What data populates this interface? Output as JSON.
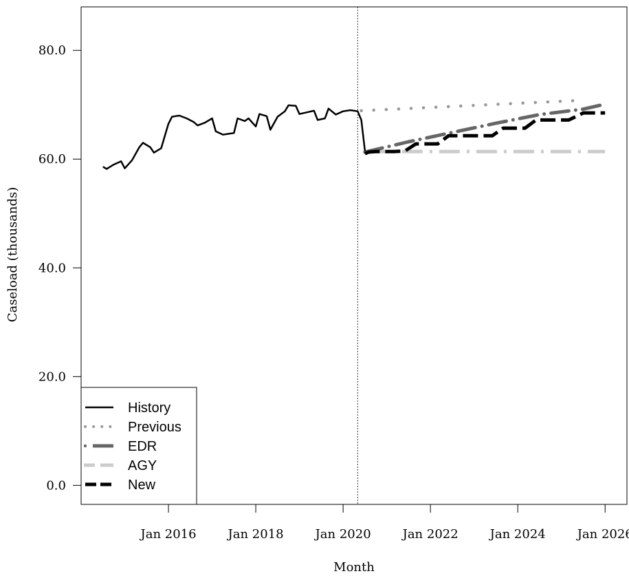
{
  "chart_data": {
    "type": "line",
    "xlabel": "Month",
    "ylabel": "Caseload (thousands)",
    "xlim": [
      "2014-01",
      "2026-07"
    ],
    "ylim": [
      -3.5,
      88
    ],
    "x_ticks": [
      {
        "date": "2016-01",
        "label": "Jan 2016"
      },
      {
        "date": "2018-01",
        "label": "Jan 2018"
      },
      {
        "date": "2020-01",
        "label": "Jan 2020"
      },
      {
        "date": "2022-01",
        "label": "Jan 2022"
      },
      {
        "date": "2024-01",
        "label": "Jan 2024"
      },
      {
        "date": "2026-01",
        "label": "Jan 2026"
      }
    ],
    "y_ticks": [
      {
        "value": 0,
        "label": "0.0"
      },
      {
        "value": 20,
        "label": "20.0"
      },
      {
        "value": 40,
        "label": "40.0"
      },
      {
        "value": 60,
        "label": "60.0"
      },
      {
        "value": 80,
        "label": "80.0"
      }
    ],
    "forecast_start": "2020-05",
    "legend": {
      "position": "bottom-left",
      "entries": [
        "History",
        "Previous",
        "EDR",
        "AGY",
        "New"
      ]
    },
    "series": [
      {
        "name": "History",
        "color": "#000000",
        "style": "solid",
        "points": [
          [
            "2014-07",
            58.6
          ],
          [
            "2014-08",
            58.2
          ],
          [
            "2014-10",
            59.0
          ],
          [
            "2014-12",
            59.6
          ],
          [
            "2015-01",
            58.3
          ],
          [
            "2015-03",
            59.8
          ],
          [
            "2015-05",
            62.2
          ],
          [
            "2015-06",
            63.0
          ],
          [
            "2015-08",
            62.2
          ],
          [
            "2015-09",
            61.2
          ],
          [
            "2015-11",
            62.0
          ],
          [
            "2016-01",
            66.5
          ],
          [
            "2016-02",
            67.8
          ],
          [
            "2016-04",
            68.0
          ],
          [
            "2016-06",
            67.5
          ],
          [
            "2016-08",
            66.8
          ],
          [
            "2016-09",
            66.2
          ],
          [
            "2016-11",
            66.7
          ],
          [
            "2017-01",
            67.5
          ],
          [
            "2017-02",
            65.1
          ],
          [
            "2017-04",
            64.5
          ],
          [
            "2017-05",
            64.6
          ],
          [
            "2017-07",
            64.8
          ],
          [
            "2017-08",
            67.5
          ],
          [
            "2017-10",
            67.0
          ],
          [
            "2017-11",
            67.5
          ],
          [
            "2018-01",
            66.0
          ],
          [
            "2018-02",
            68.3
          ],
          [
            "2018-04",
            67.9
          ],
          [
            "2018-05",
            65.4
          ],
          [
            "2018-07",
            67.8
          ],
          [
            "2018-09",
            68.8
          ],
          [
            "2018-10",
            69.9
          ],
          [
            "2018-12",
            69.8
          ],
          [
            "2019-01",
            68.3
          ],
          [
            "2019-03",
            68.6
          ],
          [
            "2019-05",
            68.9
          ],
          [
            "2019-06",
            67.2
          ],
          [
            "2019-08",
            67.5
          ],
          [
            "2019-09",
            69.3
          ],
          [
            "2019-11",
            68.2
          ],
          [
            "2020-01",
            68.8
          ],
          [
            "2020-03",
            69.0
          ],
          [
            "2020-05",
            68.8
          ],
          [
            "2020-06",
            67.2
          ],
          [
            "2020-07",
            61.5
          ]
        ]
      },
      {
        "name": "Previous",
        "color": "#999999",
        "style": "dotted",
        "points": [
          [
            "2020-06",
            68.9
          ],
          [
            "2025-06",
            70.8
          ]
        ]
      },
      {
        "name": "EDR",
        "color": "#666666",
        "style": "dashdot",
        "points": [
          [
            "2020-07",
            61.3
          ],
          [
            "2021-07",
            63.2
          ],
          [
            "2022-07",
            64.9
          ],
          [
            "2023-07",
            66.6
          ],
          [
            "2024-07",
            68.2
          ],
          [
            "2025-07",
            69.2
          ],
          [
            "2026-01",
            70.1
          ]
        ]
      },
      {
        "name": "AGY",
        "color": "#cccccc",
        "style": "longdashdot",
        "points": [
          [
            "2020-07",
            61.4
          ],
          [
            "2026-01",
            61.4
          ]
        ]
      },
      {
        "name": "New",
        "color": "#000000",
        "style": "dashed-step",
        "points": [
          [
            "2020-07",
            61.0
          ],
          [
            "2020-08",
            61.3
          ],
          [
            "2020-10",
            61.4
          ],
          [
            "2021-03",
            61.4
          ],
          [
            "2021-06",
            61.5
          ],
          [
            "2021-09",
            62.8
          ],
          [
            "2022-03",
            62.8
          ],
          [
            "2022-06",
            64.3
          ],
          [
            "2023-06",
            64.3
          ],
          [
            "2023-09",
            65.7
          ],
          [
            "2024-03",
            65.7
          ],
          [
            "2024-06",
            67.2
          ],
          [
            "2024-09",
            67.2
          ],
          [
            "2025-03",
            67.2
          ],
          [
            "2025-07",
            68.5
          ],
          [
            "2026-01",
            68.5
          ]
        ]
      }
    ]
  }
}
